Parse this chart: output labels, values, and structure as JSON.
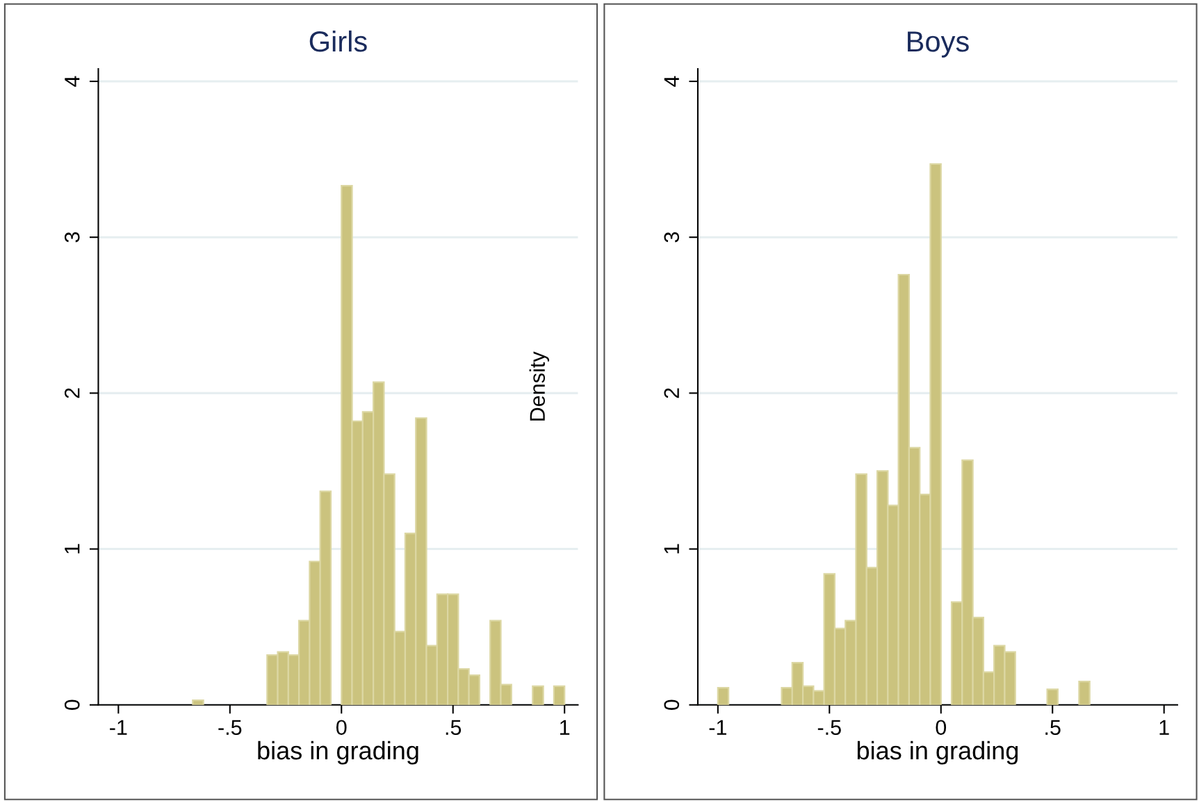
{
  "chart_data": [
    {
      "type": "histogram",
      "title": "Girls",
      "xlabel": "bias in grading",
      "color": "#cbc37e",
      "bins": [
        -0.6667,
        -0.619,
        -0.5714,
        -0.5238,
        -0.4762,
        -0.4286,
        -0.381,
        -0.3333,
        -0.2857,
        -0.2381,
        -0.1905,
        -0.1429,
        -0.0952,
        -0.0476,
        0,
        0.0476,
        0.0952,
        0.1429,
        0.1905,
        0.2381,
        0.2857,
        0.3333,
        0.381,
        0.4286,
        0.4762,
        0.5238,
        0.5714,
        0.619,
        0.6667,
        0.7143,
        0.7619,
        0.8095,
        0.8571,
        0.9048,
        0.9524,
        1
      ],
      "values": [
        0.03,
        0,
        0,
        0,
        0,
        0,
        0,
        0.32,
        0.34,
        0.32,
        0.54,
        0.92,
        1.37,
        0,
        3.33,
        1.82,
        1.88,
        2.07,
        1.48,
        0.47,
        1.1,
        1.84,
        0.38,
        0.71,
        0.71,
        0.23,
        0.19,
        0,
        0.54,
        0.13,
        0,
        0,
        0.12,
        0,
        0.12
      ],
      "xlim": [
        -1.09,
        1.06
      ],
      "ylim": [
        0,
        4.08
      ],
      "xticks": [
        {
          "value": -1,
          "label": "-1"
        },
        {
          "value": -0.5,
          "label": "-.5"
        },
        {
          "value": 0,
          "label": "0"
        },
        {
          "value": 0.5,
          "label": ".5"
        },
        {
          "value": 1,
          "label": "1"
        }
      ],
      "yticks": [
        0,
        1,
        2,
        3,
        4
      ],
      "grid": "y"
    },
    {
      "type": "histogram",
      "title": "Boys",
      "xlabel": "bias in grading",
      "ylabel": "Density",
      "color": "#cbc37e",
      "bins": [
        -1,
        -0.9524,
        -0.9048,
        -0.8571,
        -0.8095,
        -0.7619,
        -0.7143,
        -0.6667,
        -0.619,
        -0.5714,
        -0.5238,
        -0.4762,
        -0.4286,
        -0.381,
        -0.3333,
        -0.2857,
        -0.2381,
        -0.1905,
        -0.1429,
        -0.0952,
        -0.0476,
        0,
        0.0476,
        0.0952,
        0.1429,
        0.1905,
        0.2381,
        0.2857,
        0.3333,
        0.381,
        0.4286,
        0.4762,
        0.5238,
        0.5714,
        0.619,
        0.6667
      ],
      "values": [
        0.11,
        0,
        0,
        0,
        0,
        0,
        0.11,
        0.27,
        0.12,
        0.09,
        0.84,
        0.49,
        0.54,
        1.48,
        0.88,
        1.5,
        1.28,
        2.76,
        1.65,
        1.35,
        3.47,
        0,
        0.66,
        1.57,
        0.56,
        0.21,
        0.38,
        0.34,
        0,
        0,
        0,
        0.1,
        0,
        0,
        0.15
      ],
      "xlim": [
        -1.09,
        1.06
      ],
      "ylim": [
        0,
        4.08
      ],
      "xticks": [
        {
          "value": -1,
          "label": "-1"
        },
        {
          "value": -0.5,
          "label": "-.5"
        },
        {
          "value": 0,
          "label": "0"
        },
        {
          "value": 0.5,
          "label": ".5"
        },
        {
          "value": 1,
          "label": "1"
        }
      ],
      "yticks": [
        0,
        1,
        2,
        3,
        4
      ],
      "grid": "y"
    }
  ]
}
